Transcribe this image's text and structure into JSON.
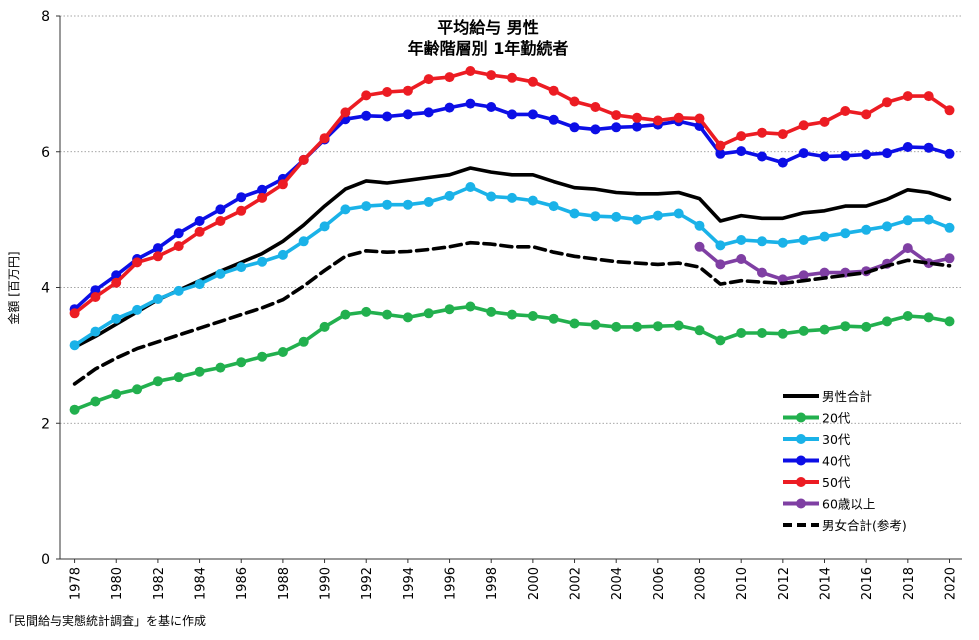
{
  "chart_data": {
    "type": "line",
    "title": "平均給与 男性",
    "subtitle": "年齢階層別 1年勤続者",
    "ylabel": "金額 [百万円]",
    "xlabel": "",
    "ylim": [
      0,
      8
    ],
    "y_ticks": [
      "0",
      "2",
      "4",
      "6",
      "8"
    ],
    "x_ticks": [
      "1978",
      "1980",
      "1982",
      "1984",
      "1986",
      "1988",
      "1990",
      "1992",
      "1994",
      "1996",
      "1998",
      "2000",
      "2002",
      "2004",
      "2006",
      "2008",
      "2010",
      "2012",
      "2014",
      "2016",
      "2018",
      "2020"
    ],
    "xlim": [
      1978,
      2020
    ],
    "grid": "horizontal dotted",
    "legend_position": "bottom-right",
    "series": [
      {
        "name": "男性合計",
        "color": "#000000",
        "style": "solid",
        "markers": false,
        "start": 1978,
        "values": [
          3.12,
          3.28,
          3.46,
          3.64,
          3.82,
          3.96,
          4.1,
          4.24,
          4.37,
          4.5,
          4.68,
          4.92,
          5.2,
          5.45,
          5.57,
          5.54,
          5.58,
          5.62,
          5.66,
          5.76,
          5.7,
          5.66,
          5.66,
          5.56,
          5.47,
          5.45,
          5.4,
          5.38,
          5.38,
          5.4,
          5.31,
          4.98,
          5.06,
          5.02,
          5.02,
          5.1,
          5.13,
          5.2,
          5.2,
          5.3,
          5.44,
          5.4,
          5.3
        ]
      },
      {
        "name": "20代",
        "color": "#22b04e",
        "style": "solid",
        "markers": true,
        "start": 1978,
        "values": [
          2.2,
          2.32,
          2.43,
          2.5,
          2.62,
          2.68,
          2.76,
          2.82,
          2.9,
          2.98,
          3.05,
          3.2,
          3.42,
          3.6,
          3.64,
          3.6,
          3.56,
          3.62,
          3.68,
          3.72,
          3.64,
          3.6,
          3.58,
          3.54,
          3.47,
          3.45,
          3.42,
          3.42,
          3.43,
          3.44,
          3.37,
          3.22,
          3.33,
          3.33,
          3.32,
          3.36,
          3.38,
          3.43,
          3.42,
          3.5,
          3.58,
          3.56,
          3.5
        ]
      },
      {
        "name": "30代",
        "color": "#1ab2e8",
        "style": "solid",
        "markers": true,
        "start": 1978,
        "values": [
          3.15,
          3.35,
          3.54,
          3.67,
          3.83,
          3.95,
          4.05,
          4.2,
          4.3,
          4.38,
          4.48,
          4.68,
          4.9,
          5.15,
          5.2,
          5.22,
          5.22,
          5.26,
          5.35,
          5.48,
          5.34,
          5.32,
          5.28,
          5.2,
          5.09,
          5.05,
          5.04,
          5.0,
          5.06,
          5.09,
          4.91,
          4.62,
          4.7,
          4.68,
          4.66,
          4.7,
          4.75,
          4.8,
          4.85,
          4.9,
          4.99,
          5.0,
          4.88
        ]
      },
      {
        "name": "40代",
        "color": "#0c0ee6",
        "style": "solid",
        "markers": true,
        "start": 1978,
        "values": [
          3.68,
          3.96,
          4.18,
          4.42,
          4.58,
          4.8,
          4.98,
          5.15,
          5.33,
          5.44,
          5.6,
          5.88,
          6.18,
          6.48,
          6.53,
          6.52,
          6.55,
          6.58,
          6.65,
          6.71,
          6.66,
          6.55,
          6.55,
          6.47,
          6.36,
          6.33,
          6.36,
          6.37,
          6.4,
          6.45,
          6.38,
          5.97,
          6.01,
          5.93,
          5.84,
          5.98,
          5.93,
          5.94,
          5.96,
          5.98,
          6.07,
          6.06,
          5.97
        ]
      },
      {
        "name": "50代",
        "color": "#ec1c23",
        "style": "solid",
        "markers": true,
        "start": 1978,
        "values": [
          3.62,
          3.86,
          4.07,
          4.37,
          4.46,
          4.61,
          4.82,
          4.98,
          5.13,
          5.32,
          5.52,
          5.88,
          6.2,
          6.58,
          6.83,
          6.88,
          6.9,
          7.07,
          7.1,
          7.19,
          7.13,
          7.09,
          7.03,
          6.9,
          6.74,
          6.66,
          6.54,
          6.5,
          6.46,
          6.5,
          6.49,
          6.09,
          6.23,
          6.28,
          6.26,
          6.39,
          6.44,
          6.6,
          6.55,
          6.73,
          6.82,
          6.82,
          6.61
        ]
      },
      {
        "name": "60歳以上",
        "color": "#7f3fa3",
        "style": "solid",
        "markers": true,
        "start": 2008,
        "values": [
          4.6,
          4.34,
          4.42,
          4.22,
          4.12,
          4.18,
          4.22,
          4.22,
          4.24,
          4.35,
          4.58,
          4.36,
          4.43
        ]
      },
      {
        "name": "男女合計(参考)",
        "color": "#000000",
        "style": "dashed",
        "markers": false,
        "start": 1978,
        "values": [
          2.58,
          2.8,
          2.96,
          3.1,
          3.2,
          3.3,
          3.4,
          3.5,
          3.6,
          3.7,
          3.82,
          4.02,
          4.25,
          4.46,
          4.54,
          4.52,
          4.53,
          4.56,
          4.6,
          4.66,
          4.64,
          4.6,
          4.6,
          4.52,
          4.46,
          4.42,
          4.38,
          4.36,
          4.34,
          4.36,
          4.3,
          4.05,
          4.1,
          4.08,
          4.06,
          4.1,
          4.14,
          4.18,
          4.22,
          4.32,
          4.4,
          4.36,
          4.32
        ]
      }
    ]
  },
  "source_note": "「民間給与実態統計調査」を基に作成"
}
